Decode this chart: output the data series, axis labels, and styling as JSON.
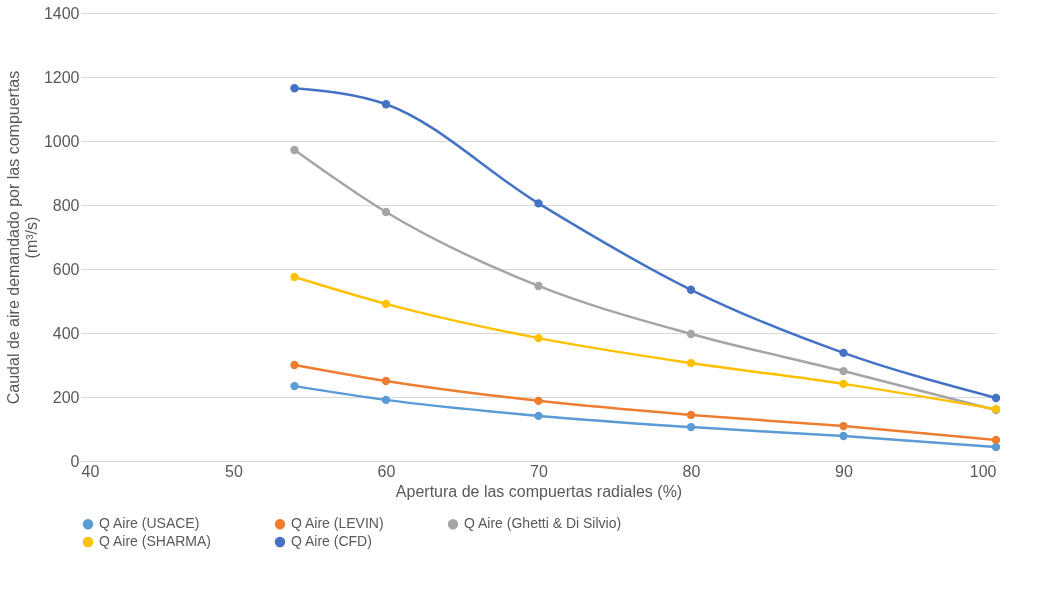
{
  "chart_data": {
    "type": "line",
    "xlabel": "Apertura de las compuertas radiales (%)",
    "ylabel": "Caudal de aire demandado por las compuertas (m³/s)",
    "x": [
      54,
      60,
      70,
      80,
      90,
      100
    ],
    "xlim": [
      40,
      100
    ],
    "xticks": [
      40,
      50,
      60,
      70,
      80,
      90,
      100
    ],
    "ylim": [
      0,
      1400
    ],
    "yticks": [
      0,
      200,
      400,
      600,
      800,
      1000,
      1200,
      1400
    ],
    "grid": "y",
    "legend": "bottom",
    "marker": "circle",
    "line_style": "solid",
    "series": [
      {
        "name": "Q Aire (USACE)",
        "color": "#5b9bd5",
        "values": [
          234,
          191,
          141,
          106,
          78,
          44
        ]
      },
      {
        "name": "Q Aire (LEVIN)",
        "color": "#ed7d31",
        "values": [
          300,
          250,
          188,
          144,
          109,
          66
        ]
      },
      {
        "name": "Q Aire (Ghetti & Di Silvio)",
        "color": "#a5a5a5",
        "values": [
          972,
          778,
          547,
          397,
          281,
          159
        ]
      },
      {
        "name": "Q Aire (SHARMA)",
        "color": "#ffc000",
        "values": [
          575,
          491,
          384,
          306,
          241,
          162
        ]
      },
      {
        "name": "Q Aire (CFD)",
        "color": "#4472c4",
        "values": [
          1165,
          1115,
          805,
          535,
          338,
          197
        ]
      }
    ]
  }
}
